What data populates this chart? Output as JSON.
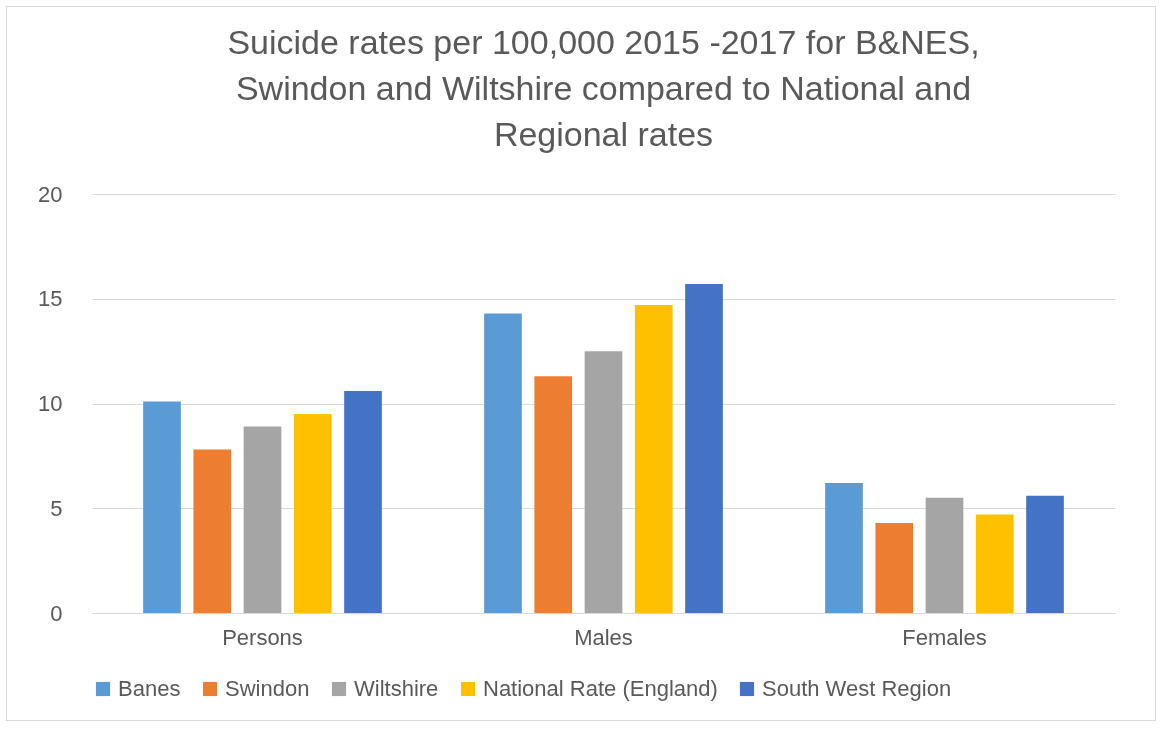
{
  "chart_data": {
    "type": "bar",
    "title": [
      "Suicide rates per 100,000 2015 -2017 for B&NES,",
      "Swindon and Wiltshire compared to National and",
      "Regional rates"
    ],
    "categories": [
      "Persons",
      "Males",
      "Females"
    ],
    "series": [
      {
        "name": "Banes",
        "color": "#5b9bd5",
        "values": [
          10.1,
          14.3,
          6.2
        ]
      },
      {
        "name": "Swindon",
        "color": "#ed7d31",
        "values": [
          7.8,
          11.3,
          4.3
        ]
      },
      {
        "name": "Wiltshire",
        "color": "#a5a5a5",
        "values": [
          8.9,
          12.5,
          5.5
        ]
      },
      {
        "name": "National Rate (England)",
        "color": "#ffc000",
        "values": [
          9.5,
          14.7,
          4.7
        ]
      },
      {
        "name": "South West Region",
        "color": "#4472c4",
        "values": [
          10.6,
          15.7,
          5.6
        ]
      }
    ],
    "ylim": [
      0,
      20
    ],
    "yticks": [
      0,
      5,
      10,
      15,
      20
    ],
    "grid": "y",
    "legend": "bottom"
  }
}
